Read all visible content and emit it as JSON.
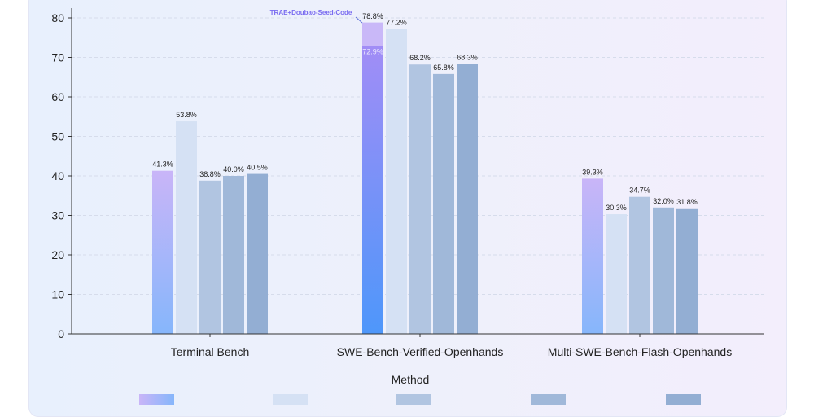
{
  "chart_data": {
    "type": "bar",
    "categories": [
      "Terminal Bench",
      "SWE-Bench-Verified-Openhands",
      "Multi-SWE-Bench-Flash-Openhands"
    ],
    "series": [
      {
        "color_top": "#c9b5f8",
        "color_bottom": "#86b6fb",
        "values": [
          41.3,
          78.8,
          39.3
        ],
        "labels": [
          "41.3%",
          "78.8%",
          "39.3%"
        ]
      },
      {
        "color": "#d5e1f4",
        "values": [
          53.8,
          77.2,
          30.3
        ],
        "labels": [
          "53.8%",
          "77.2%",
          "30.3%"
        ]
      },
      {
        "color": "#b1c5e1",
        "values": [
          38.8,
          68.2,
          34.7
        ],
        "labels": [
          "38.8%",
          "68.2%",
          "34.7%"
        ]
      },
      {
        "color": "#a0b8d9",
        "values": [
          40.0,
          65.8,
          32.0
        ],
        "labels": [
          "40.0%",
          "65.8%",
          "32.0%"
        ]
      },
      {
        "color": "#93aed3",
        "values": [
          40.5,
          68.3,
          31.8
        ],
        "labels": [
          "40.5%",
          "68.3%",
          "31.8%"
        ]
      }
    ],
    "inner_marker": {
      "category": 1,
      "value": 72.9,
      "label": "72.9%"
    },
    "annotation": "TRAE+Doubao-Seed-Code",
    "xlabel": "Method",
    "ylabel": "",
    "ylim": [
      0,
      80
    ],
    "yticks": [
      0,
      10,
      20,
      30,
      40,
      50,
      60,
      70,
      80
    ],
    "grid": true
  }
}
